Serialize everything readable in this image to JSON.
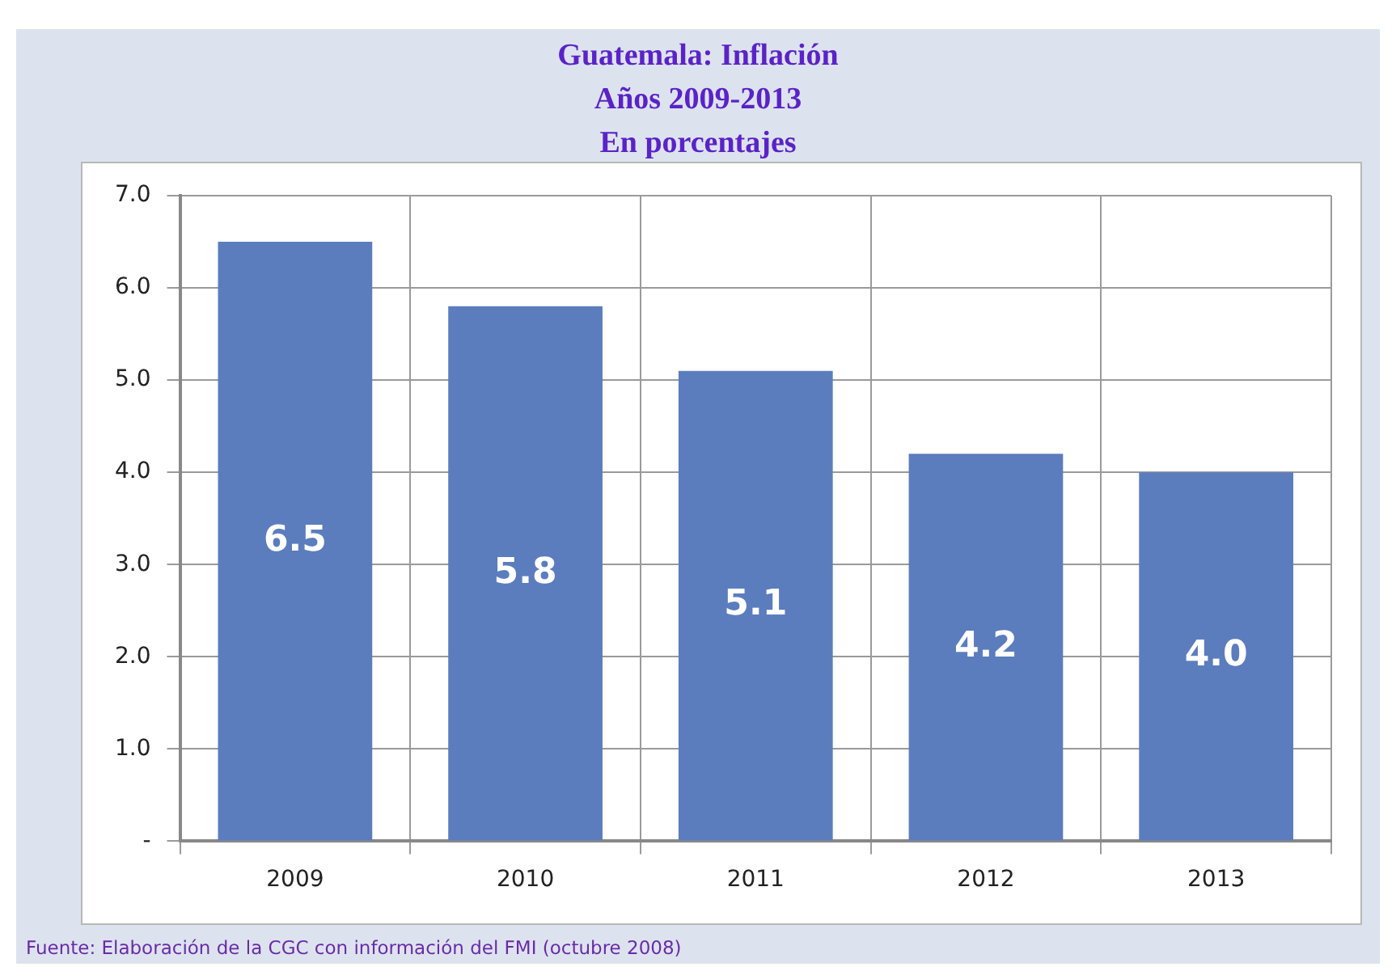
{
  "chart_data": {
    "type": "bar",
    "title": "Guatemala: Inflación",
    "subtitle": "Años 2009-2013\nEn porcentajes",
    "categories": [
      "2009",
      "2010",
      "2011",
      "2012",
      "2013"
    ],
    "values": [
      6.5,
      5.8,
      5.1,
      4.2,
      4.0
    ],
    "color": "#5b7dbe",
    "value_labels": [
      "6.5",
      "5.8",
      "5.1",
      "4.2",
      "4.0"
    ],
    "ylim": [
      0,
      7
    ],
    "yticks": [
      {
        "value": 0,
        "label": "-"
      },
      {
        "value": 1,
        "label": "1.0"
      },
      {
        "value": 2,
        "label": "2.0"
      },
      {
        "value": 3,
        "label": "3.0"
      },
      {
        "value": 4,
        "label": "4.0"
      },
      {
        "value": 5,
        "label": "5.0"
      },
      {
        "value": 6,
        "label": "6.0"
      },
      {
        "value": 7,
        "label": "7.0"
      }
    ],
    "grid": true,
    "annotations": [
      "Fuente: Elaboración de la CGC con información del FMI (octubre 2008)"
    ]
  }
}
